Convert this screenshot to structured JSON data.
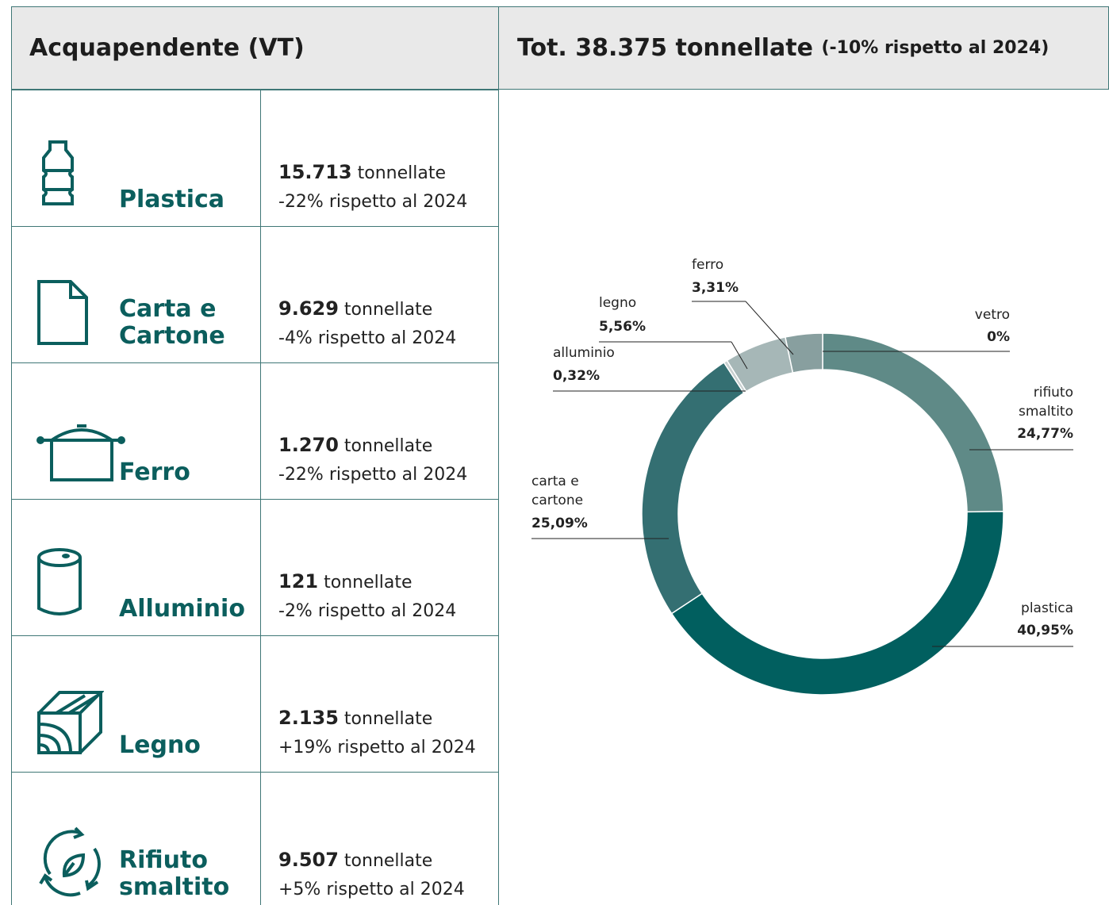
{
  "header": {
    "title": "Acquapendente (VT)",
    "total": "Tot. 38.375 tonnellate",
    "total_note": "(-10% rispetto al 2024)"
  },
  "rows": [
    {
      "name": "Plastica",
      "amount": "15.713",
      "unit": "tonnellate",
      "change": "-22% rispetto al 2024"
    },
    {
      "name": "Carta e Cartone",
      "amount": "9.629",
      "unit": "tonnellate",
      "change": "-4% rispetto al 2024"
    },
    {
      "name": "Ferro",
      "amount": "1.270",
      "unit": "tonnellate",
      "change": "-22% rispetto al 2024"
    },
    {
      "name": "Alluminio",
      "amount": "121",
      "unit": "tonnellate",
      "change": "-2% rispetto al 2024"
    },
    {
      "name": "Legno",
      "amount": "2.135",
      "unit": "tonnellate",
      "change": "+19% rispetto al 2024"
    },
    {
      "name": "Rifiuto smaltito",
      "amount": "9.507",
      "unit": "tonnellate",
      "change": "+5% rispetto al 2024"
    }
  ],
  "chart_data": {
    "type": "pie",
    "categories": [
      "vetro",
      "rifiuto smaltito",
      "plastica",
      "carta e cartone",
      "alluminio",
      "legno",
      "ferro"
    ],
    "values": [
      0,
      24.77,
      40.95,
      25.09,
      0.32,
      5.56,
      3.31
    ],
    "value_labels": [
      "0%",
      "24,77%",
      "40,95%",
      "25,09%",
      "0,32%",
      "5,56%",
      "3,31%"
    ],
    "colors": [
      "#e8eded",
      "#5f8a87",
      "#015f5f",
      "#346f72",
      "#c8d0d0",
      "#a6b7b7",
      "#889f9f"
    ]
  }
}
